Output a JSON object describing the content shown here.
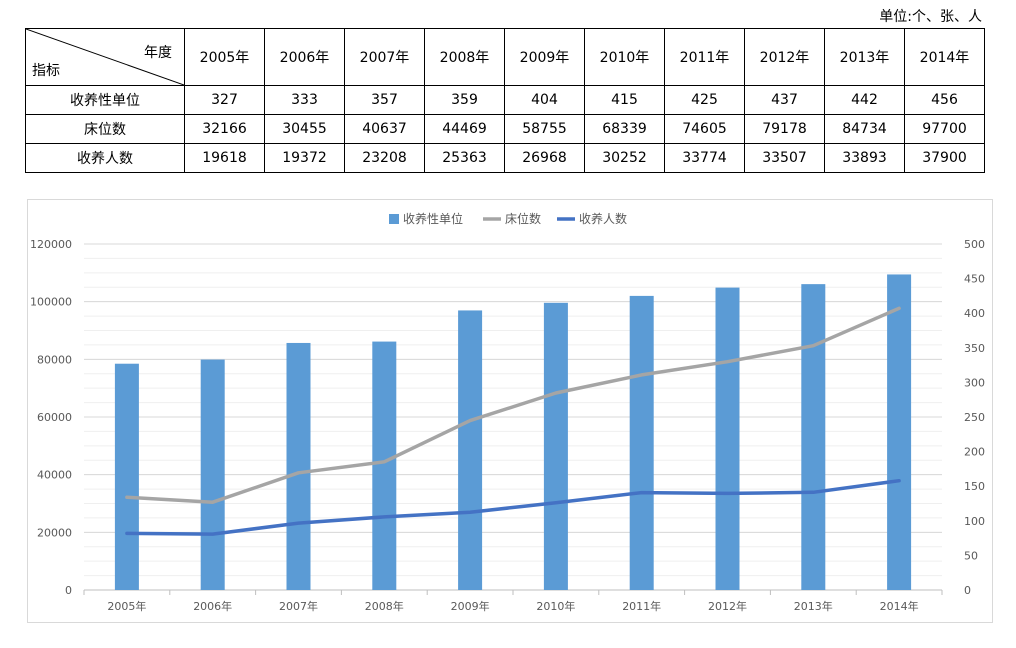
{
  "unit_note": "单位:个、张、人",
  "table": {
    "corner_top": "年度",
    "corner_bottom": "指标",
    "years": [
      "2005年",
      "2006年",
      "2007年",
      "2008年",
      "2009年",
      "2010年",
      "2011年",
      "2012年",
      "2013年",
      "2014年"
    ],
    "rows": [
      {
        "label": "收养性单位",
        "values": [
          "327",
          "333",
          "357",
          "359",
          "404",
          "415",
          "425",
          "437",
          "442",
          "456"
        ]
      },
      {
        "label": "床位数",
        "values": [
          "32166",
          "30455",
          "40637",
          "44469",
          "58755",
          "68339",
          "74605",
          "79178",
          "84734",
          "97700"
        ]
      },
      {
        "label": "收养人数",
        "values": [
          "19618",
          "19372",
          "23208",
          "25363",
          "26968",
          "30252",
          "33774",
          "33507",
          "33893",
          "37900"
        ]
      }
    ]
  },
  "chart_data": {
    "type": "bar",
    "categories": [
      "2005年",
      "2006年",
      "2007年",
      "2008年",
      "2009年",
      "2010年",
      "2011年",
      "2012年",
      "2013年",
      "2014年"
    ],
    "series": [
      {
        "name": "收养性单位",
        "type": "bar",
        "axis": "right",
        "color": "#5b9bd5",
        "values": [
          327,
          333,
          357,
          359,
          404,
          415,
          425,
          437,
          442,
          456
        ]
      },
      {
        "name": "床位数",
        "type": "line",
        "axis": "left",
        "color": "#a5a5a5",
        "values": [
          32166,
          30455,
          40637,
          44469,
          58755,
          68339,
          74605,
          79178,
          84734,
          97700
        ]
      },
      {
        "name": "收养人数",
        "type": "line",
        "axis": "left",
        "color": "#4472c4",
        "values": [
          19618,
          19372,
          23208,
          25363,
          26968,
          30252,
          33774,
          33507,
          33893,
          37900
        ]
      }
    ],
    "y_left": {
      "min": 0,
      "max": 120000,
      "ticks": [
        0,
        20000,
        40000,
        60000,
        80000,
        100000,
        120000
      ]
    },
    "y_right": {
      "min": 0,
      "max": 500,
      "ticks": [
        0,
        50,
        100,
        150,
        200,
        250,
        300,
        350,
        400,
        450,
        500
      ]
    },
    "legend_position": "top",
    "grid": true
  }
}
